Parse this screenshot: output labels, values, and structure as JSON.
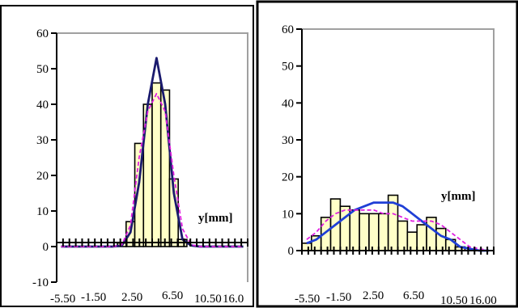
{
  "chart_data": [
    {
      "type": "bar",
      "title": "",
      "xlabel": "y[mm]",
      "ylabel": "",
      "ylim": [
        -10,
        60
      ],
      "ytick_values": [
        -10,
        0,
        10,
        20,
        30,
        40,
        50,
        60
      ],
      "ytick_labels": [
        "-10",
        "0",
        "10",
        "20",
        "30",
        "40",
        "50",
        "60"
      ],
      "xtick_labels": [
        "-5.50",
        "-1.50",
        "2.50",
        "6.50",
        "10.50",
        "16.0"
      ],
      "grid": false,
      "bar_color": "#ffffc8",
      "x": [
        -5.5,
        -4.5,
        -3.5,
        -2.5,
        -1.5,
        -0.5,
        0.5,
        1.5,
        2.5,
        3.5,
        4.5,
        5.5,
        6.5,
        7.5,
        8.5,
        9.5,
        10.5,
        11.5,
        12.5,
        13.5,
        14.5,
        15.5
      ],
      "values": [
        0,
        0,
        0,
        0,
        0,
        0,
        0,
        1,
        7,
        29,
        40,
        46,
        44,
        19,
        2,
        0,
        0,
        0,
        0,
        0,
        0,
        0
      ],
      "series": [
        {
          "color": "#1a1a6e",
          "style": "solid",
          "values": [
            0,
            0,
            0,
            0,
            0,
            0,
            0,
            0.3,
            4,
            18,
            40,
            53,
            40,
            15,
            2,
            0.3,
            0,
            0,
            0,
            0,
            0,
            0
          ]
        },
        {
          "color": "#e020e0",
          "style": "dashed",
          "values": [
            0,
            0,
            0,
            0,
            0,
            0,
            0,
            0.5,
            6,
            25,
            38,
            43,
            38,
            20,
            5,
            0.5,
            0,
            0,
            0,
            0,
            0,
            0
          ]
        }
      ]
    },
    {
      "type": "bar",
      "title": "",
      "xlabel": "y[mm]",
      "ylabel": "",
      "ylim": [
        0,
        60
      ],
      "ytick_values": [
        0,
        10,
        20,
        30,
        40,
        50,
        60
      ],
      "ytick_labels": [
        "0",
        "10",
        "20",
        "30",
        "40",
        "50",
        "60"
      ],
      "xtick_labels": [
        "-5.50",
        "-1.50",
        "2.50",
        "6.50",
        "10.50",
        "16.00"
      ],
      "grid": false,
      "bar_color": "#ffffc8",
      "x": [
        -5.5,
        -4.5,
        -3.5,
        -2.5,
        -1.5,
        -0.5,
        0.5,
        1.5,
        2.5,
        3.5,
        4.5,
        5.5,
        6.5,
        7.5,
        8.5,
        9.5,
        10.5,
        11.5,
        12.5,
        13.5
      ],
      "values": [
        2,
        4,
        9,
        14,
        12,
        11,
        10,
        10,
        10,
        15,
        8,
        5,
        7,
        9,
        6,
        3,
        1,
        0,
        0,
        0
      ],
      "series": [
        {
          "color": "#1f3fd6",
          "style": "solid",
          "values": [
            2,
            3,
            5,
            7,
            9,
            11,
            12,
            13,
            13,
            13,
            12,
            10,
            8,
            6,
            4,
            3,
            1,
            0.5,
            0,
            0
          ]
        },
        {
          "color": "#e020e0",
          "style": "dashed",
          "values": [
            3,
            5,
            8,
            10,
            11,
            11,
            11,
            11,
            10,
            10,
            9,
            8,
            8,
            8,
            7,
            5,
            3,
            1,
            0.5,
            0
          ]
        }
      ]
    }
  ]
}
